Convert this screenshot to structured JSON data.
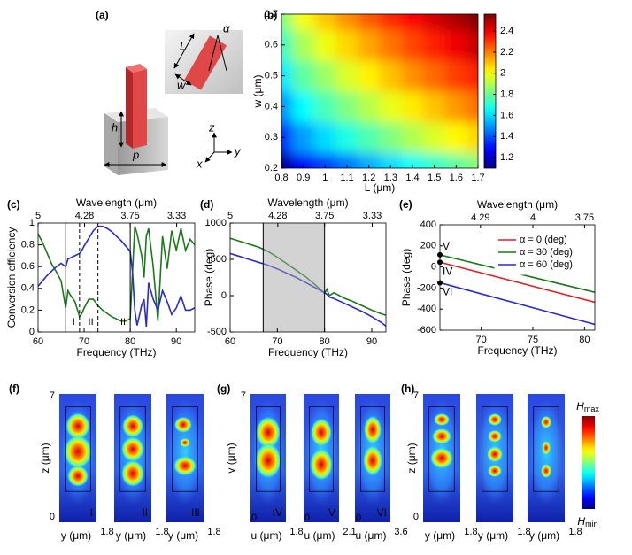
{
  "panel_a": {
    "label": "(a)",
    "height": "h",
    "period": "p",
    "length": "L",
    "width": "w",
    "angle": "α",
    "axes": {
      "z": "z",
      "y": "y",
      "x": "x"
    }
  },
  "chart_data": [
    {
      "type": "heatmap",
      "label": "(b)",
      "x": [
        0.8,
        0.9,
        1.0,
        1.1,
        1.2,
        1.3,
        1.4,
        1.5,
        1.6,
        1.7
      ],
      "y": [
        0.2,
        0.3,
        0.4,
        0.5,
        0.6,
        0.7
      ],
      "values": [
        [
          1.12,
          1.28,
          1.37,
          1.45,
          1.53,
          1.6,
          1.66,
          1.72,
          1.78,
          1.84
        ],
        [
          1.35,
          1.51,
          1.6,
          1.69,
          1.76,
          1.83,
          1.9,
          1.96,
          2.02,
          2.07
        ],
        [
          1.5,
          1.65,
          1.75,
          1.83,
          1.91,
          1.98,
          2.04,
          2.1,
          2.16,
          2.22
        ],
        [
          1.62,
          1.78,
          1.87,
          1.96,
          2.03,
          2.1,
          2.17,
          2.23,
          2.29,
          2.34
        ],
        [
          1.74,
          1.89,
          1.99,
          2.07,
          2.14,
          2.21,
          2.28,
          2.34,
          2.4,
          2.46
        ],
        [
          1.84,
          2.0,
          2.09,
          2.17,
          2.25,
          2.32,
          2.38,
          2.44,
          2.5,
          2.56
        ]
      ],
      "xlim": [
        0.8,
        1.7
      ],
      "ylim": [
        0.2,
        0.7
      ],
      "xticks": [
        0.8,
        0.9,
        1,
        1.1,
        1.2,
        1.3,
        1.4,
        1.5,
        1.6,
        1.7
      ],
      "yticks": [
        0.2,
        0.3,
        0.4,
        0.5,
        0.6,
        0.7
      ],
      "xlabel": "L (μm)",
      "ylabel": "w (μm)",
      "colormap": "jet",
      "clim": [
        1.1,
        2.56
      ],
      "colorbar_ticks": [
        1.2,
        1.4,
        1.6,
        1.8,
        2,
        2.2,
        2.4
      ]
    },
    {
      "type": "line",
      "label": "(c)",
      "x": [
        60,
        61,
        62,
        63,
        64,
        65,
        66,
        66.5,
        67,
        68,
        69,
        69.5,
        70,
        71,
        72,
        73,
        74,
        75,
        76,
        77,
        78,
        79,
        80,
        80.5,
        81,
        81.5,
        82,
        82.5,
        83,
        83.5,
        84,
        85,
        86,
        87,
        88,
        89,
        90,
        91,
        92,
        93,
        94
      ],
      "series": [
        {
          "color": "#1a7a1a",
          "values": [
            0.9,
            0.82,
            0.72,
            0.62,
            0.55,
            0.47,
            0.22,
            0.38,
            0.34,
            0.28,
            0.14,
            0.17,
            0.22,
            0.3,
            0.3,
            0.24,
            0.2,
            0.17,
            0.14,
            0.12,
            0.1,
            0.1,
            0.12,
            0.55,
            0.97,
            0.9,
            0.8,
            0.7,
            0.5,
            0.88,
            0.95,
            0.6,
            0.1,
            0.88,
            0.58,
            0.93,
            0.75,
            0.95,
            0.75,
            0.85,
            0.8
          ]
        },
        {
          "color": "#2a2ad0",
          "values": [
            0.42,
            0.47,
            0.52,
            0.56,
            0.6,
            0.63,
            0.6,
            0.67,
            0.68,
            0.7,
            0.72,
            0.75,
            0.79,
            0.86,
            0.93,
            0.97,
            0.97,
            0.95,
            0.92,
            0.88,
            0.84,
            0.79,
            0.74,
            0.55,
            0.2,
            0.06,
            0.15,
            0.25,
            0.3,
            0.05,
            0.45,
            0.3,
            0.2,
            0.38,
            0.28,
            0.16,
            0.22,
            0.33,
            0.2,
            0.2,
            0.22
          ]
        }
      ],
      "xlim": [
        60,
        94
      ],
      "ylim": [
        0,
        1
      ],
      "xticks": [
        60,
        70,
        80,
        90
      ],
      "yticks": [
        0,
        0.2,
        0.4,
        0.6,
        0.8,
        1
      ],
      "x2scale": "reciprocal",
      "x2lim": [
        5,
        3.191
      ],
      "x2ticks": [
        5,
        4.28,
        3.75,
        3.33
      ],
      "x2label": "Wavelength (μm)",
      "xlabel": "Frequency (THz)",
      "ylabel": "Conversion efficiency",
      "vlines": [
        {
          "x": 66,
          "dashed": false
        },
        {
          "x": 69,
          "dashed": true,
          "label": "I"
        },
        {
          "x": 73,
          "dashed": true,
          "label": "II"
        },
        {
          "x": 80,
          "dashed": false,
          "label": "III"
        }
      ]
    },
    {
      "type": "line",
      "label": "(d)",
      "x": [
        60,
        62,
        64,
        66,
        67,
        68,
        70,
        72,
        74,
        76,
        78,
        80,
        80.5,
        81,
        82,
        84,
        86,
        88,
        90,
        92,
        93
      ],
      "series": [
        {
          "color": "#1a7a1a",
          "values": [
            790,
            750,
            710,
            670,
            640,
            610,
            530,
            440,
            350,
            260,
            150,
            30,
            90,
            0,
            40,
            -30,
            -80,
            -140,
            -200,
            -250,
            -270
          ]
        },
        {
          "color": "#2a2ad0",
          "values": [
            580,
            540,
            500,
            460,
            440,
            420,
            370,
            310,
            250,
            180,
            110,
            40,
            20,
            -20,
            -40,
            -100,
            -160,
            -220,
            -290,
            -370,
            -420
          ]
        }
      ],
      "xlim": [
        60,
        93
      ],
      "ylim": [
        -500,
        1000
      ],
      "xticks": [
        60,
        70,
        80,
        90
      ],
      "yticks": [
        -500,
        0,
        500,
        1000
      ],
      "x2scale": "reciprocal",
      "x2lim": [
        5,
        3.226
      ],
      "x2ticks": [
        5,
        4.28,
        3.75,
        3.33
      ],
      "x2label": "Wavelength (μm)",
      "xlabel": "Frequency (THz)",
      "ylabel": "Phase (deg)",
      "shade": [
        67,
        80
      ],
      "vlines": [
        {
          "x": 67,
          "dashed": false
        },
        {
          "x": 80,
          "dashed": false
        }
      ]
    },
    {
      "type": "line",
      "label": "(e)",
      "x": [
        66,
        81
      ],
      "series": [
        {
          "name": "α = 0 (deg)",
          "color": "#e02020",
          "values": [
            45,
            -335
          ],
          "point_label": "IV"
        },
        {
          "name": "α = 30 (deg)",
          "color": "#1a7a1a",
          "values": [
            115,
            -240
          ],
          "point_label": "V"
        },
        {
          "name": "α = 60 (deg)",
          "color": "#2a2ad0",
          "values": [
            -150,
            -545
          ],
          "point_label": "VI"
        }
      ],
      "xlim": [
        66,
        81
      ],
      "ylim": [
        -600,
        400
      ],
      "xticks": [
        70,
        75,
        80
      ],
      "yticks": [
        -600,
        -400,
        -200,
        0,
        200,
        400
      ],
      "x2scale": "reciprocal",
      "x2lim": [
        4.545,
        3.704
      ],
      "x2ticks": [
        4.29,
        4,
        3.75
      ],
      "x2label": "Wavelength (μm)",
      "xlabel": "Frequency (THz)",
      "ylabel": "Phase (deg)",
      "legend": "upper right"
    }
  ],
  "field_maps": [
    {
      "label": "(f)",
      "ylabel": "z (μm)",
      "yticks": [
        7,
        0
      ],
      "maps": [
        {
          "tag": "I",
          "xlabel": "y (μm)",
          "xticks": [
            1.8
          ]
        },
        {
          "tag": "II",
          "xlabel": "y (μm)",
          "xticks": [
            1.8
          ]
        },
        {
          "tag": "III",
          "xlabel": "y (μm)",
          "xticks": [
            1.8
          ]
        }
      ]
    },
    {
      "label": "(g)",
      "ylabel": "v (μm)",
      "yticks": [
        7
      ],
      "maps": [
        {
          "tag": "IV",
          "xlabel": "u (μm)",
          "xticks": [
            0,
            1.8
          ]
        },
        {
          "tag": "V",
          "xlabel": "u (μm)",
          "xticks": [
            0,
            2.1
          ]
        },
        {
          "tag": "VI",
          "xlabel": "u (μm)",
          "xticks": [
            0,
            3.6
          ]
        }
      ]
    },
    {
      "label": "(h)",
      "ylabel": "z (μm)",
      "yticks": [
        7,
        0
      ],
      "maps": [
        {
          "xlabel": "y (μm)",
          "xticks": [
            1.8
          ]
        },
        {
          "xlabel": "y (μm)",
          "xticks": [
            1.8
          ]
        },
        {
          "xlabel": "y (μm)",
          "xticks": [
            1.8
          ]
        }
      ]
    }
  ],
  "field_colorbar": {
    "symbol": "H",
    "max": "max",
    "min": "min"
  }
}
